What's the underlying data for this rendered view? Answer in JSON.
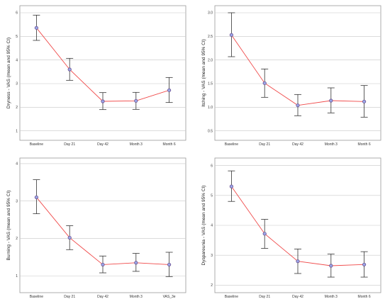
{
  "chart_data": [
    {
      "type": "line",
      "ylabel": "Dryness - VAS (mean and 95% CI)",
      "categories": [
        "Baseline",
        "Day 21",
        "Day 42",
        "Month 3",
        "Month 6"
      ],
      "series": [
        {
          "values": [
            5.36,
            3.6,
            2.25,
            2.27,
            2.72
          ],
          "ci_low": [
            4.83,
            3.14,
            1.9,
            1.91,
            2.2
          ],
          "ci_high": [
            5.9,
            4.07,
            2.62,
            2.63,
            3.26
          ]
        }
      ],
      "yticks": [
        1,
        2,
        3,
        4,
        5,
        6
      ],
      "ylim": [
        0.6,
        6.3
      ],
      "grid": true,
      "colors": {
        "line": "#f04a4a",
        "marker_fill": "#9aa6e8",
        "marker_edge": "#6b4f8e"
      }
    },
    {
      "type": "line",
      "ylabel": "Itching - VAS (mean and 95% CI)",
      "categories": [
        "Baseline",
        "Day 21",
        "Day 42",
        "Month 3",
        "Month 6"
      ],
      "series": [
        {
          "values": [
            2.53,
            1.51,
            1.04,
            1.14,
            1.12
          ],
          "ci_low": [
            2.07,
            1.21,
            0.82,
            0.88,
            0.79
          ],
          "ci_high": [
            3.0,
            1.81,
            1.27,
            1.41,
            1.46
          ]
        }
      ],
      "yticks": [
        0.5,
        1.0,
        1.5,
        2.0,
        2.5,
        3.0
      ],
      "yticklabels": [
        "0.5",
        "1.0",
        "1.5",
        "2.0",
        "2.5",
        "3.0"
      ],
      "ylim": [
        0.3,
        3.15
      ],
      "grid": true,
      "colors": {
        "line": "#f04a4a",
        "marker_fill": "#9aa6e8",
        "marker_edge": "#6b4f8e"
      }
    },
    {
      "type": "line",
      "ylabel": "Burning - VAS (mean and 95% CI)",
      "categories": [
        "Baseline",
        "Day 21",
        "Day 42",
        "Month 3",
        "VAS_3e"
      ],
      "series": [
        {
          "values": [
            3.1,
            2.02,
            1.3,
            1.35,
            1.3
          ],
          "ci_low": [
            2.66,
            1.7,
            1.08,
            1.12,
            0.98
          ],
          "ci_high": [
            3.57,
            2.34,
            1.53,
            1.6,
            1.63
          ]
        }
      ],
      "yticks": [
        1,
        2,
        3,
        4
      ],
      "ylim": [
        0.55,
        4.15
      ],
      "grid": true,
      "colors": {
        "line": "#f04a4a",
        "marker_fill": "#9aa6e8",
        "marker_edge": "#6b4f8e"
      }
    },
    {
      "type": "line",
      "ylabel": "Dyspareunia - VAS (mean and 95% CI)",
      "categories": [
        "Baseline",
        "Day 21",
        "Day 42",
        "Month 3",
        "Month 6"
      ],
      "series": [
        {
          "values": [
            5.3,
            3.72,
            2.8,
            2.65,
            2.69
          ],
          "ci_low": [
            4.8,
            3.23,
            2.39,
            2.27,
            2.27
          ],
          "ci_high": [
            5.82,
            4.2,
            3.21,
            3.04,
            3.12
          ]
        }
      ],
      "yticks": [
        2,
        3,
        4,
        5,
        6
      ],
      "ylim": [
        1.75,
        6.25
      ],
      "grid": true,
      "colors": {
        "line": "#f04a4a",
        "marker_fill": "#9aa6e8",
        "marker_edge": "#6b4f8e"
      }
    }
  ]
}
